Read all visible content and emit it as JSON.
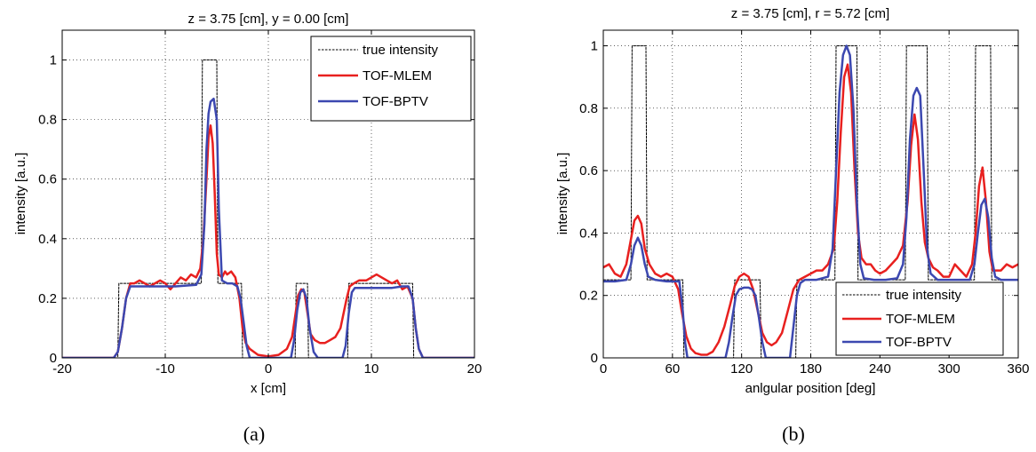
{
  "chart_data": [
    {
      "type": "line",
      "title": "z = 3.75 [cm], y = 0.00 [cm]",
      "xlabel": "x [cm]",
      "ylabel": "intensity [a.u.]",
      "xlim": [
        -20,
        20
      ],
      "ylim": [
        0,
        1.1
      ],
      "xticks": [
        -20,
        -10,
        0,
        10,
        20
      ],
      "yticks": [
        0,
        0.2,
        0.4,
        0.6,
        0.8,
        1
      ],
      "grid": true,
      "legend_position": "top-right",
      "caption": "(a)",
      "series": [
        {
          "name": "true intensity",
          "color": "#000000",
          "style": "dashed",
          "x": [
            -20,
            -14.6,
            -14.5,
            -6.5,
            -6.4,
            -5.0,
            -4.9,
            -2.6,
            -2.5,
            2.6,
            2.7,
            3.8,
            3.9,
            7.7,
            7.8,
            14.0,
            14.1,
            20
          ],
          "y": [
            0,
            0,
            0.25,
            0.25,
            1.0,
            1.0,
            0.25,
            0.25,
            0,
            0,
            0.25,
            0.25,
            0,
            0,
            0.25,
            0.25,
            0,
            0
          ]
        },
        {
          "name": "TOF-MLEM",
          "color": "#e8201f",
          "style": "solid",
          "x": [
            -20,
            -15.0,
            -14.6,
            -14.2,
            -13.8,
            -13.4,
            -13,
            -12.5,
            -12,
            -11.5,
            -11,
            -10.5,
            -10,
            -9.5,
            -9,
            -8.5,
            -8,
            -7.5,
            -7,
            -6.6,
            -6.3,
            -6.0,
            -5.8,
            -5.6,
            -5.4,
            -5.2,
            -5.0,
            -4.8,
            -4.5,
            -4.2,
            -4,
            -3.6,
            -3.2,
            -2.8,
            -2.5,
            -2.2,
            -1.8,
            -1,
            0,
            1,
            1.8,
            2.3,
            2.6,
            2.9,
            3.2,
            3.5,
            3.8,
            4.1,
            4.5,
            5,
            5.5,
            6,
            6.5,
            7,
            7.3,
            7.6,
            7.9,
            8.3,
            8.8,
            9.5,
            10,
            10.5,
            11,
            11.5,
            12,
            12.5,
            13,
            13.5,
            14.0,
            14.3,
            14.6,
            15.0,
            20
          ],
          "y": [
            0,
            0,
            0.02,
            0.1,
            0.2,
            0.25,
            0.25,
            0.26,
            0.25,
            0.24,
            0.25,
            0.26,
            0.25,
            0.23,
            0.25,
            0.27,
            0.26,
            0.28,
            0.27,
            0.3,
            0.4,
            0.6,
            0.74,
            0.78,
            0.72,
            0.55,
            0.35,
            0.28,
            0.27,
            0.29,
            0.28,
            0.29,
            0.27,
            0.2,
            0.1,
            0.05,
            0.03,
            0.01,
            0.005,
            0.01,
            0.03,
            0.07,
            0.14,
            0.21,
            0.23,
            0.22,
            0.15,
            0.08,
            0.06,
            0.05,
            0.05,
            0.06,
            0.07,
            0.1,
            0.15,
            0.2,
            0.24,
            0.25,
            0.26,
            0.26,
            0.27,
            0.28,
            0.27,
            0.26,
            0.25,
            0.26,
            0.23,
            0.24,
            0.2,
            0.1,
            0.03,
            0,
            0
          ]
        },
        {
          "name": "TOF-BPTV",
          "color": "#3c48b0",
          "style": "solid",
          "x": [
            -20,
            -15.0,
            -14.6,
            -14.2,
            -13.8,
            -13.4,
            -13,
            -11,
            -9,
            -7,
            -6.5,
            -6.2,
            -6.0,
            -5.8,
            -5.6,
            -5.3,
            -5.0,
            -4.8,
            -4.5,
            -4,
            -3.5,
            -3,
            -2.7,
            -2.4,
            -2.1,
            -1.8,
            2.2,
            2.5,
            2.8,
            3.1,
            3.4,
            3.7,
            4.0,
            4.4,
            4.8,
            7.2,
            7.5,
            7.8,
            8.1,
            8.4,
            9,
            10,
            11,
            12,
            13,
            13.6,
            14.0,
            14.3,
            14.6,
            15.0,
            20
          ],
          "y": [
            0,
            0,
            0.02,
            0.1,
            0.2,
            0.24,
            0.24,
            0.24,
            0.24,
            0.245,
            0.28,
            0.45,
            0.7,
            0.82,
            0.86,
            0.87,
            0.8,
            0.5,
            0.26,
            0.25,
            0.25,
            0.24,
            0.2,
            0.12,
            0.04,
            0,
            0,
            0.06,
            0.16,
            0.22,
            0.23,
            0.2,
            0.1,
            0.02,
            0,
            0,
            0.04,
            0.15,
            0.22,
            0.235,
            0.235,
            0.235,
            0.235,
            0.235,
            0.24,
            0.24,
            0.2,
            0.1,
            0.03,
            0,
            0
          ]
        }
      ]
    },
    {
      "type": "line",
      "title": "z = 3.75 [cm], r = 5.72 [cm]",
      "xlabel": "anlgular position [deg]",
      "ylabel": "intensity [a.u.]",
      "xlim": [
        0,
        360
      ],
      "ylim": [
        0,
        1.05
      ],
      "xticks": [
        0,
        60,
        120,
        180,
        240,
        300,
        360
      ],
      "yticks": [
        0,
        0.2,
        0.4,
        0.6,
        0.8,
        1
      ],
      "grid": true,
      "legend_position": "bottom-right",
      "caption": "(b)",
      "series": [
        {
          "name": "true intensity",
          "color": "#000000",
          "style": "dashed",
          "x": [
            0,
            24,
            25,
            37,
            38,
            69,
            70,
            113,
            114,
            136,
            137,
            167,
            168,
            201,
            202,
            220,
            221,
            262,
            263,
            281,
            282,
            322,
            323,
            336,
            337,
            360
          ],
          "y": [
            0.25,
            0.25,
            1.0,
            1.0,
            0.25,
            0.25,
            0,
            0,
            0.25,
            0.25,
            0,
            0,
            0.25,
            0.25,
            1.0,
            1.0,
            0.25,
            0.25,
            1.0,
            1.0,
            0.25,
            0.25,
            1.0,
            1.0,
            0.25,
            0.25
          ]
        },
        {
          "name": "TOF-MLEM",
          "color": "#e8201f",
          "style": "solid",
          "x": [
            0,
            5,
            10,
            15,
            20,
            24,
            27,
            30,
            33,
            36,
            40,
            45,
            50,
            55,
            60,
            65,
            68,
            72,
            76,
            80,
            85,
            90,
            95,
            100,
            105,
            110,
            114,
            118,
            122,
            126,
            130,
            134,
            138,
            142,
            146,
            150,
            155,
            160,
            165,
            170,
            175,
            180,
            185,
            190,
            195,
            200,
            203,
            206,
            209,
            212,
            215,
            218,
            221,
            224,
            228,
            232,
            236,
            240,
            245,
            250,
            255,
            260,
            264,
            267,
            270,
            273,
            276,
            279,
            282,
            286,
            290,
            295,
            300,
            305,
            310,
            315,
            320,
            323,
            326,
            329,
            332,
            335,
            338,
            341,
            345,
            350,
            355,
            360
          ],
          "y": [
            0.29,
            0.3,
            0.27,
            0.26,
            0.3,
            0.38,
            0.44,
            0.455,
            0.43,
            0.35,
            0.3,
            0.27,
            0.26,
            0.27,
            0.26,
            0.22,
            0.15,
            0.07,
            0.03,
            0.015,
            0.01,
            0.01,
            0.02,
            0.05,
            0.1,
            0.17,
            0.23,
            0.26,
            0.27,
            0.26,
            0.22,
            0.15,
            0.08,
            0.05,
            0.04,
            0.05,
            0.08,
            0.15,
            0.22,
            0.25,
            0.26,
            0.27,
            0.28,
            0.28,
            0.3,
            0.35,
            0.5,
            0.72,
            0.9,
            0.94,
            0.85,
            0.6,
            0.4,
            0.32,
            0.3,
            0.3,
            0.28,
            0.27,
            0.28,
            0.3,
            0.32,
            0.36,
            0.5,
            0.68,
            0.78,
            0.7,
            0.5,
            0.37,
            0.32,
            0.29,
            0.28,
            0.26,
            0.26,
            0.3,
            0.28,
            0.26,
            0.3,
            0.4,
            0.55,
            0.61,
            0.5,
            0.34,
            0.28,
            0.28,
            0.28,
            0.3,
            0.29,
            0.3
          ]
        },
        {
          "name": "TOF-BPTV",
          "color": "#3c48b0",
          "style": "solid",
          "x": [
            0,
            10,
            20,
            24,
            27,
            30,
            33,
            36,
            39,
            45,
            55,
            62,
            66,
            69,
            71,
            73,
            106,
            109,
            112,
            115,
            118,
            122,
            126,
            129,
            132,
            135,
            138,
            141,
            162,
            165,
            168,
            171,
            175,
            185,
            195,
            199,
            202,
            205,
            208,
            211,
            214,
            217,
            220,
            223,
            226,
            235,
            245,
            255,
            260,
            263,
            266,
            269,
            272,
            275,
            278,
            281,
            284,
            290,
            300,
            310,
            318,
            322,
            325,
            328,
            331,
            334,
            337,
            340,
            345,
            360
          ],
          "y": [
            0.245,
            0.245,
            0.25,
            0.3,
            0.36,
            0.385,
            0.36,
            0.3,
            0.26,
            0.25,
            0.245,
            0.245,
            0.245,
            0.15,
            0.05,
            0,
            0,
            0.05,
            0.13,
            0.2,
            0.22,
            0.225,
            0.225,
            0.22,
            0.2,
            0.13,
            0.05,
            0,
            0,
            0.1,
            0.2,
            0.24,
            0.25,
            0.25,
            0.26,
            0.35,
            0.6,
            0.85,
            0.97,
            1.0,
            0.97,
            0.8,
            0.5,
            0.3,
            0.255,
            0.25,
            0.25,
            0.255,
            0.3,
            0.45,
            0.7,
            0.84,
            0.865,
            0.84,
            0.6,
            0.35,
            0.27,
            0.25,
            0.25,
            0.25,
            0.25,
            0.3,
            0.4,
            0.49,
            0.51,
            0.45,
            0.32,
            0.26,
            0.25,
            0.25
          ]
        }
      ]
    }
  ]
}
